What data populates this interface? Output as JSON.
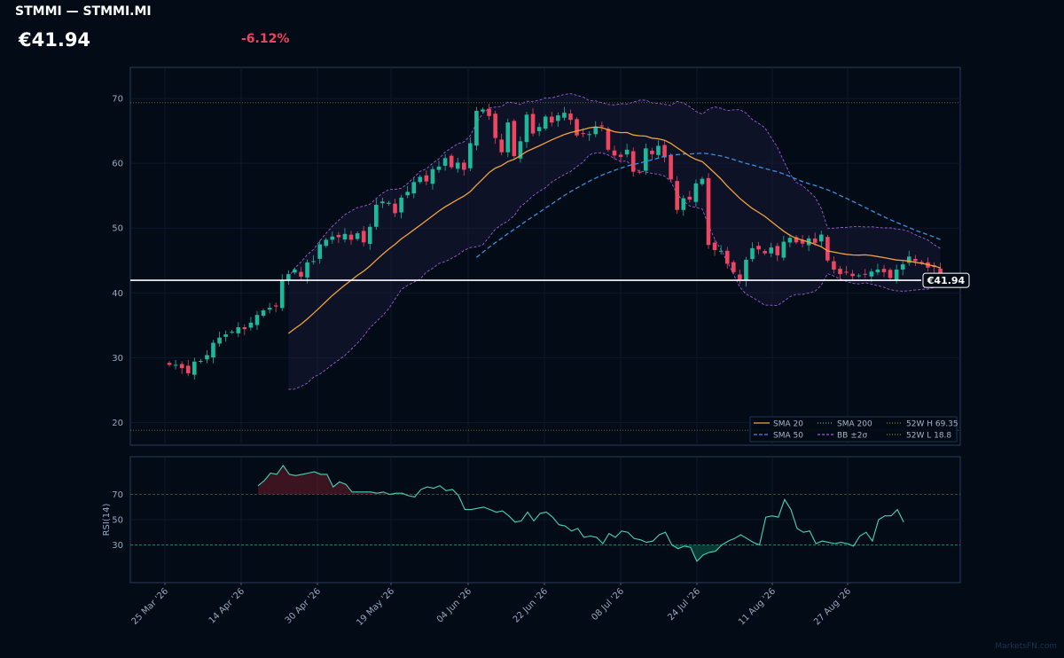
{
  "header": {
    "title": "STMMI — STMMI.MI",
    "price": "€41.94",
    "change": "-6.12%"
  },
  "watermark": "MarketsFN.com",
  "colors": {
    "background": "#020b16",
    "up": "#1fb89a",
    "down": "#ee4660",
    "sma20": "#f2a33a",
    "sma50": "#3b8fe0",
    "sma200": "#3fb08a",
    "bollinger": "#a15bd6",
    "rsi": "#46d4b4",
    "last_price_line": "#ffffff"
  },
  "chart_data": [
    {
      "type": "candlestick",
      "x_tick_labels": [
        "25 Mar '26",
        "14 Apr '26",
        "30 Apr '26",
        "19 May '26",
        "04 Jun '26",
        "22 Jun '26",
        "08 Jul '26",
        "24 Jul '26",
        "11 Aug '26",
        "27 Aug '26"
      ],
      "y_ticks": [
        20,
        30,
        40,
        50,
        60,
        70
      ],
      "ylim": [
        16.5,
        74.8
      ],
      "grid": true,
      "last_price": 41.94,
      "last_price_label": "€41.94",
      "high_52w": 69.35,
      "low_52w": 18.8,
      "legend": {
        "placement": "bottom-right",
        "entries": [
          "SMA 20",
          "SMA 50",
          "SMA 200",
          "BB ±2σ",
          "52W H 69.35",
          "52W L 18.8"
        ]
      },
      "closes": [
        28.9,
        28.9,
        28.4,
        27.6,
        29.4,
        29.5,
        30.4,
        32.3,
        33.1,
        33.6,
        34.0,
        34.7,
        34.4,
        35.4,
        36.6,
        37.3,
        37.7,
        37.9,
        42.0,
        42.9,
        43.6,
        42.5,
        44.7,
        44.9,
        47.5,
        48.2,
        48.7,
        48.6,
        49.1,
        48.2,
        49.2,
        47.8,
        50.2,
        53.6,
        54.1,
        53.9,
        52.3,
        54.7,
        55.6,
        57.1,
        57.9,
        57.2,
        59.1,
        59.5,
        60.8,
        59.4,
        60.1,
        59.0,
        63.1,
        68.1,
        68.3,
        67.3,
        63.9,
        61.7,
        66.3,
        61.1,
        63.4,
        67.5,
        64.6,
        65.6,
        67.2,
        66.3,
        67.4,
        67.8,
        66.7,
        64.3,
        64.6,
        64.5,
        65.6,
        65.7,
        62.1,
        61.2,
        61.0,
        62.1,
        58.7,
        58.6,
        62.3,
        61.4,
        62.7,
        60.9,
        57.5,
        52.8,
        54.6,
        54.4,
        56.9,
        57.6,
        47.4,
        46.6,
        46.5,
        44.5,
        43.2,
        42.0,
        45.1,
        46.9,
        46.7,
        46.1,
        47.0,
        45.8,
        47.9,
        48.5,
        47.8,
        47.6,
        48.4,
        47.7,
        49.0,
        45.0,
        43.6,
        42.9,
        43.2,
        42.6,
        42.7,
        42.9,
        43.3,
        43.6,
        43.2,
        42.3,
        43.6,
        44.4,
        45.6,
        44.9,
        44.6,
        43.9,
        44.0,
        41.9
      ]
    },
    {
      "type": "line",
      "ylabel": "RSI(14)",
      "y_ticks": [
        30,
        50,
        70
      ],
      "ylim": [
        0,
        100
      ],
      "overbought": 70,
      "oversold": 30,
      "values": [
        77,
        81,
        87,
        86,
        93,
        86,
        85,
        86,
        87,
        88,
        86,
        86,
        76,
        80,
        78,
        72,
        72,
        72,
        72,
        71,
        72,
        70,
        71,
        71,
        69,
        68,
        74,
        76,
        75,
        77,
        73,
        74,
        69,
        58,
        58,
        59,
        60,
        58,
        56,
        57,
        53,
        48,
        49,
        56,
        49,
        55,
        56,
        52,
        46,
        45,
        41,
        43,
        36,
        37,
        36,
        31,
        39,
        36,
        41,
        40,
        35,
        34,
        32,
        33,
        38,
        40,
        30,
        27,
        29,
        28,
        17,
        22,
        24,
        25,
        30,
        33,
        35,
        38,
        35,
        32,
        30,
        52,
        53,
        52,
        66,
        58,
        43,
        40,
        41,
        31,
        33,
        32,
        31,
        32,
        31,
        29,
        37,
        40,
        33,
        50,
        53,
        53,
        58,
        48
      ]
    }
  ]
}
